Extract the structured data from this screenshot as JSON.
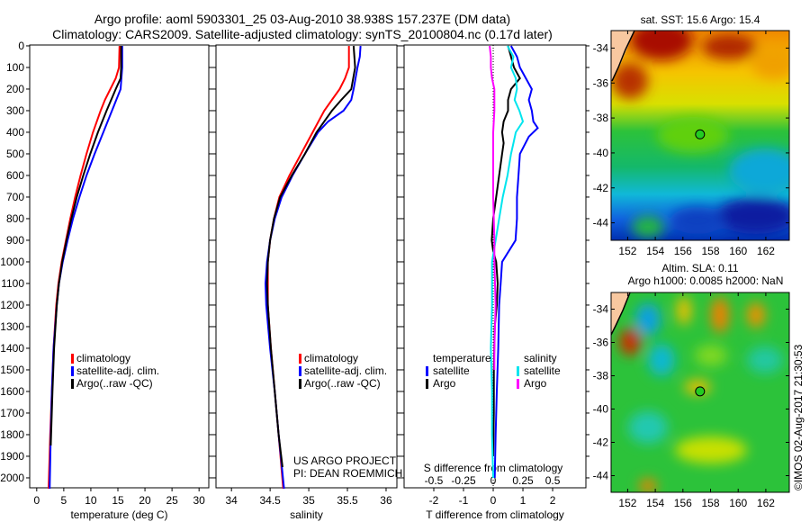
{
  "title": {
    "line1": "Argo profile: aoml 5903301_25 03-Aug-2010 38.938S 157.237E (DM data)",
    "line2": "Climatology: CARS2009. Satellite-adjusted climatology: synTS_20100804.nc (0.17d later)"
  },
  "credit": "©IMOS 02-Aug-2017 21:30:53",
  "project": {
    "line1": "US ARGO PROJECT",
    "line2": "PI: DEAN ROEMMICH"
  },
  "colors": {
    "climatology": "#ff0000",
    "satellite": "#0000ff",
    "argo": "#000000",
    "sal_satellite": "#00e5ee",
    "sal_argo": "#ff00ff"
  },
  "chart_data": [
    {
      "type": "line",
      "id": "temperature",
      "xlabel": "temperature (deg C)",
      "ylabel": "",
      "xlim": [
        -1.3,
        31.8
      ],
      "ylim": [
        2046,
        -4
      ],
      "xticks": [
        0,
        5,
        10,
        15,
        20,
        25,
        30
      ],
      "yticks": [
        0,
        100,
        200,
        300,
        400,
        500,
        600,
        700,
        800,
        900,
        1000,
        1100,
        1200,
        1300,
        1400,
        1500,
        1600,
        1700,
        1800,
        1900,
        2000
      ],
      "legend": [
        "climatology",
        "satellite-adj. clim.",
        "Argo(..raw -QC)"
      ],
      "series": [
        {
          "name": "climatology",
          "color": "#ff0000",
          "depth": [
            0,
            100,
            150,
            200,
            250,
            300,
            400,
            500,
            600,
            700,
            800,
            900,
            1000,
            1100,
            1200,
            1400,
            1600,
            1800,
            2050
          ],
          "values": [
            15.3,
            15.2,
            14.6,
            13.6,
            12.6,
            11.8,
            10.4,
            9.2,
            8.1,
            7.1,
            6.2,
            5.4,
            4.6,
            4.0,
            3.6,
            3.1,
            2.8,
            2.5,
            2.2
          ]
        },
        {
          "name": "satellite-adj. clim.",
          "color": "#0000ff",
          "depth": [
            0,
            100,
            200,
            250,
            300,
            400,
            500,
            600,
            700,
            800,
            900,
            1000,
            1100,
            1200,
            1400,
            1600,
            1800,
            2050
          ],
          "values": [
            15.8,
            15.8,
            15.5,
            14.7,
            13.9,
            12.3,
            10.7,
            9.2,
            7.9,
            6.7,
            5.7,
            4.8,
            4.1,
            3.7,
            3.1,
            2.8,
            2.6,
            2.4
          ]
        },
        {
          "name": "Argo(..raw -QC)",
          "color": "#000000",
          "depth": [
            0,
            100,
            150,
            200,
            300,
            400,
            500,
            600,
            700,
            800,
            900,
            1000,
            1100,
            1200,
            1400,
            1600,
            1850
          ],
          "values": [
            15.6,
            15.6,
            15.5,
            14.6,
            12.9,
            11.3,
            9.9,
            8.6,
            7.4,
            6.4,
            5.5,
            4.7,
            4.1,
            3.7,
            3.2,
            2.9,
            2.6
          ]
        }
      ]
    },
    {
      "type": "line",
      "id": "salinity",
      "xlabel": "salinity",
      "xlim": [
        33.8,
        36.14
      ],
      "ylim": [
        2046,
        -4
      ],
      "xticks": [
        34,
        34.5,
        35,
        35.5,
        36
      ],
      "legend": [
        "climatology",
        "satellite-adj. clim.",
        "Argo(..raw -QC)"
      ],
      "series": [
        {
          "name": "climatology",
          "color": "#ff0000",
          "depth": [
            0,
            100,
            150,
            200,
            250,
            300,
            400,
            500,
            600,
            700,
            800,
            900,
            1000,
            1200,
            1400,
            1600,
            1800,
            2050
          ],
          "values": [
            35.52,
            35.52,
            35.47,
            35.4,
            35.3,
            35.2,
            35.05,
            34.9,
            34.75,
            34.62,
            34.55,
            34.5,
            34.47,
            34.47,
            34.51,
            34.56,
            34.61,
            34.67
          ]
        },
        {
          "name": "satellite-adj. clim.",
          "color": "#0000ff",
          "depth": [
            0,
            50,
            100,
            200,
            250,
            300,
            350,
            400,
            500,
            600,
            700,
            800,
            900,
            1000,
            1100,
            1200,
            1400,
            1600,
            1800,
            2050
          ],
          "values": [
            35.67,
            35.66,
            35.63,
            35.58,
            35.55,
            35.45,
            35.25,
            35.12,
            34.95,
            34.79,
            34.65,
            34.56,
            34.5,
            34.46,
            34.44,
            34.45,
            34.5,
            34.56,
            34.61,
            34.68
          ]
        },
        {
          "name": "Argo(..raw -QC)",
          "color": "#000000",
          "depth": [
            0,
            100,
            200,
            250,
            300,
            400,
            500,
            600,
            700,
            800,
            900,
            1000,
            1100,
            1200,
            1400,
            1600,
            1800,
            1950
          ],
          "values": [
            35.58,
            35.6,
            35.55,
            35.42,
            35.3,
            35.1,
            34.95,
            34.78,
            34.63,
            34.55,
            34.5,
            34.47,
            34.46,
            34.47,
            34.51,
            34.56,
            34.61,
            34.66
          ]
        }
      ]
    },
    {
      "type": "line",
      "id": "difference",
      "xlabel": "T difference from climatology",
      "x2label": "S difference from climatology",
      "xlim": [
        -3.0,
        3.12
      ],
      "ylim": [
        2046,
        -4
      ],
      "xticks": [
        -2,
        -1,
        0,
        1,
        2
      ],
      "x2ticks": [
        -0.5,
        -0.25,
        0,
        0.25,
        0.5
      ],
      "x2tick_labels": [
        "-0.5",
        "-0.25",
        "0",
        "0.25",
        "0.5"
      ],
      "legend_titles": [
        "temperature",
        "salinity"
      ],
      "legend": [
        "satellite",
        "Argo",
        "satellite",
        "Argo"
      ],
      "series": [
        {
          "name": "T satellite",
          "axis": "T",
          "color": "#0000ff",
          "depth": [
            0,
            50,
            100,
            150,
            200,
            250,
            300,
            350,
            380,
            420,
            500,
            600,
            700,
            800,
            900,
            1000,
            1100,
            1200,
            1400,
            1600,
            1800,
            2000
          ],
          "values": [
            0.6,
            0.8,
            0.9,
            1.1,
            1.3,
            1.2,
            1.3,
            1.35,
            1.5,
            1.2,
            0.9,
            0.85,
            0.8,
            0.8,
            0.75,
            0.3,
            0.25,
            0.2,
            0.17,
            0.12,
            0.08,
            0.05
          ]
        },
        {
          "name": "T Argo",
          "axis": "T",
          "color": "#000000",
          "depth": [
            0,
            50,
            100,
            150,
            200,
            250,
            300,
            350,
            400,
            450,
            500,
            600,
            700,
            800,
            900,
            950,
            1000,
            1100,
            1200,
            1300,
            1500,
            1700,
            1900
          ],
          "values": [
            0.5,
            0.6,
            0.7,
            0.9,
            0.6,
            0.5,
            0.5,
            0.35,
            0.3,
            0.35,
            0.3,
            0.2,
            0.1,
            0.0,
            -0.05,
            0.0,
            0.1,
            0.15,
            0.12,
            0.05,
            0.02,
            0.02,
            0.0
          ]
        },
        {
          "name": "S satellite",
          "axis": "S",
          "color": "#00e5ee",
          "depth": [
            0,
            50,
            100,
            150,
            200,
            250,
            300,
            350,
            400,
            450,
            500,
            600,
            700,
            800,
            900,
            1000,
            1200,
            1400,
            1600,
            1800,
            2000
          ],
          "values": [
            0.12,
            0.17,
            0.15,
            0.19,
            0.2,
            0.18,
            0.22,
            0.25,
            0.19,
            0.17,
            0.15,
            0.12,
            0.08,
            0.05,
            0.02,
            -0.01,
            -0.01,
            -0.02,
            -0.01,
            -0.01,
            0.0
          ]
        },
        {
          "name": "S Argo",
          "axis": "S",
          "color": "#ff00ff",
          "depth": [
            0,
            50,
            100,
            150,
            200,
            300,
            400,
            500,
            700,
            900,
            1000,
            1200,
            1400,
            1500
          ],
          "values": [
            -0.03,
            -0.02,
            -0.02,
            -0.01,
            0.01,
            0.01,
            0.0,
            0.0,
            0.0,
            0.01,
            0.01,
            0.02,
            0.01,
            0.01
          ]
        }
      ]
    },
    {
      "type": "heatmap",
      "id": "sst-map",
      "title": "sat. SST: 15.6 Argo: 15.4",
      "xticks": [
        152,
        154,
        156,
        158,
        160,
        162
      ],
      "yticks": [
        -34,
        -36,
        -38,
        -40,
        -42,
        -44
      ],
      "xlim": [
        150.8,
        163.7
      ],
      "ylim": [
        -33,
        -45
      ],
      "argo_position": {
        "lon": 157.237,
        "lat": -38.938
      }
    },
    {
      "type": "heatmap",
      "id": "sla-map",
      "title": "Altim. SLA: 0.11",
      "subtitle": "Argo h1000: 0.0085 h2000: NaN",
      "xticks": [
        152,
        154,
        156,
        158,
        160,
        162
      ],
      "yticks": [
        -34,
        -36,
        -38,
        -40,
        -42,
        -44
      ],
      "xlim": [
        150.8,
        163.7
      ],
      "ylim": [
        -33,
        -45
      ],
      "argo_position": {
        "lon": 157.237,
        "lat": -38.938
      }
    }
  ]
}
